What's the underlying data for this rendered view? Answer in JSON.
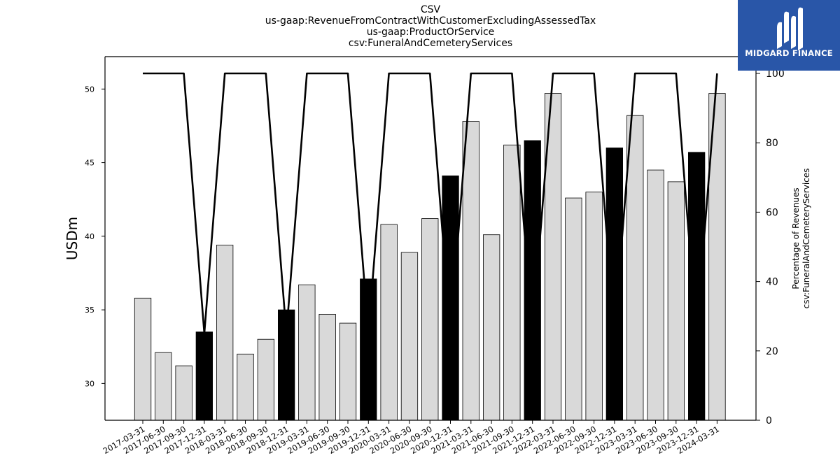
{
  "header": {
    "title_lines": [
      "CSV",
      "us-gaap:RevenueFromContractWithCustomerExcludingAssessedTax",
      "us-gaap:ProductOrService",
      "csv:FuneralAndCemeteryServices"
    ]
  },
  "logo": {
    "text": "MIDGARD FINANCE",
    "color": "#2956a8",
    "icon": "midgard-m-logo-icon"
  },
  "chart_data": {
    "type": "bar",
    "categories": [
      "2017-03-31",
      "2017-06-30",
      "2017-09-30",
      "2017-12-31",
      "2018-03-31",
      "2018-06-30",
      "2018-09-30",
      "2018-12-31",
      "2019-03-31",
      "2019-06-30",
      "2019-09-30",
      "2019-12-31",
      "2020-03-31",
      "2020-06-30",
      "2020-09-30",
      "2020-12-31",
      "2021-03-31",
      "2021-06-30",
      "2021-09-30",
      "2021-12-31",
      "2022-03-31",
      "2022-06-30",
      "2022-09-30",
      "2022-12-31",
      "2023-03-31",
      "2023-06-30",
      "2023-09-30",
      "2023-12-31",
      "2024-03-31"
    ],
    "series": [
      {
        "axis": "left",
        "type": "bar",
        "values": [
          35.8,
          32.1,
          31.2,
          33.5,
          39.4,
          32.0,
          33.0,
          35.0,
          36.7,
          34.7,
          34.1,
          37.1,
          40.8,
          38.9,
          41.2,
          44.1,
          47.8,
          40.1,
          46.2,
          46.5,
          49.7,
          42.6,
          43.0,
          46.0,
          48.2,
          44.5,
          43.7,
          45.7,
          49.7
        ],
        "bar_colors": [
          "#d9d9d9",
          "#d9d9d9",
          "#d9d9d9",
          "#000000",
          "#d9d9d9",
          "#d9d9d9",
          "#d9d9d9",
          "#000000",
          "#d9d9d9",
          "#d9d9d9",
          "#d9d9d9",
          "#000000",
          "#d9d9d9",
          "#d9d9d9",
          "#d9d9d9",
          "#000000",
          "#d9d9d9",
          "#d9d9d9",
          "#d9d9d9",
          "#000000",
          "#d9d9d9",
          "#d9d9d9",
          "#d9d9d9",
          "#000000",
          "#d9d9d9",
          "#d9d9d9",
          "#d9d9d9",
          "#000000",
          "#d9d9d9"
        ]
      },
      {
        "axis": "right",
        "type": "line",
        "values": [
          100,
          100,
          100,
          25,
          100,
          100,
          100,
          25,
          100,
          100,
          100,
          25,
          100,
          100,
          100,
          25,
          100,
          100,
          100,
          25,
          100,
          100,
          100,
          25,
          100,
          100,
          100,
          25,
          100
        ]
      }
    ],
    "ylabel": "USDm",
    "ylabel_right": [
      "Percentage of Revenues",
      "csv:FuneralAndCemeteryServices"
    ],
    "ylim": [
      27.5,
      52.2
    ],
    "yticks": [
      30,
      35,
      40,
      45,
      50
    ],
    "ylim_right": [
      0,
      100
    ],
    "yticks_right": [
      0,
      20,
      40,
      60,
      80,
      100
    ],
    "grid": false
  }
}
